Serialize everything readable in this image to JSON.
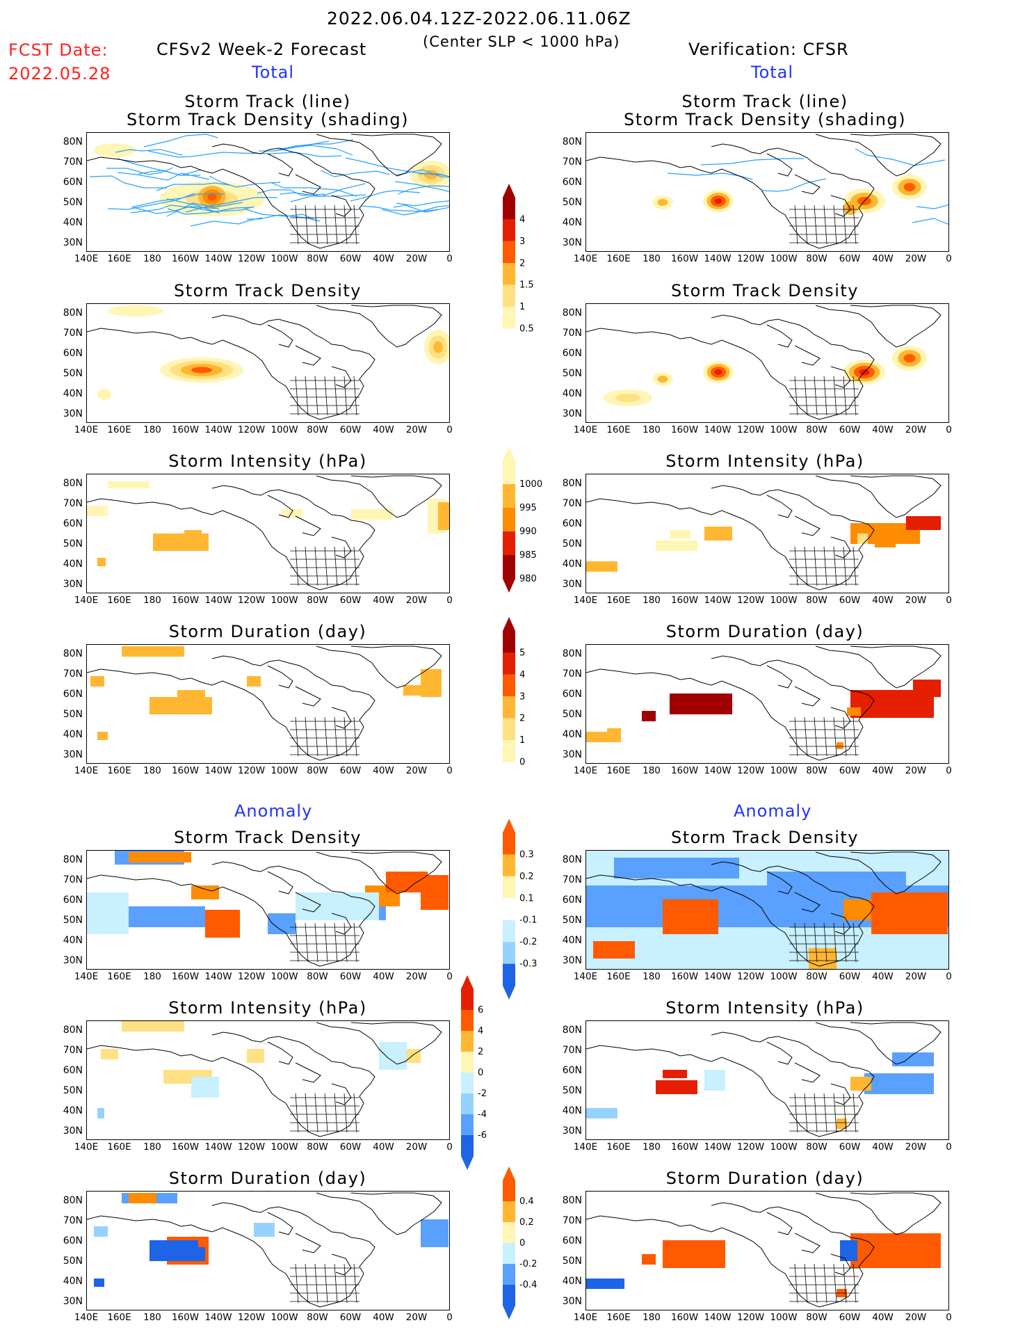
{
  "header": {
    "date_range": "2022.06.04.12Z-2022.06.11.06Z",
    "center_slp": "(Center SLP < 1000 hPa)",
    "fcst_label": "FCST Date:",
    "fcst_date": "2022.05.28",
    "left_title": "CFSv2 Week-2 Forecast",
    "right_title": "Verification: CFSR",
    "total_label": "Total",
    "anomaly_label": "Anomaly"
  },
  "panels": {
    "storm_track_line": "Storm Track (line)",
    "storm_track_shading": "Storm Track Density (shading)",
    "storm_track_density": "Storm Track Density",
    "storm_intensity": "Storm Intensity (hPa)",
    "storm_duration": "Storm Duration (day)"
  },
  "axes": {
    "lat_labels": [
      "80N",
      "70N",
      "60N",
      "50N",
      "40N",
      "30N"
    ],
    "lon_labels": [
      "140E",
      "160E",
      "180",
      "160W",
      "140W",
      "120W",
      "100W",
      "80W",
      "60W",
      "40W",
      "20W",
      "0"
    ]
  },
  "colorbars": {
    "density_total": [
      "4",
      "3",
      "2",
      "1.5",
      "1",
      "0.5"
    ],
    "intensity_total": [
      "1000",
      "995",
      "990",
      "985",
      "980"
    ],
    "duration_total": [
      "5",
      "4",
      "3",
      "2",
      "1",
      "0"
    ],
    "density_anom": [
      "0.3",
      "0.2",
      "0.1",
      "-0.1",
      "-0.2",
      "-0.3"
    ],
    "intensity_anom": [
      "6",
      "4",
      "2",
      "0",
      "-2",
      "-4",
      "-6"
    ],
    "duration_anom": [
      "0.4",
      "0.2",
      "0",
      "-0.2",
      "-0.4"
    ]
  },
  "colors": {
    "warm": [
      "#fff5b4",
      "#ffe082",
      "#ffb732",
      "#ff8c00",
      "#ff5a00",
      "#e61e00",
      "#a00000"
    ],
    "cool": [
      "#c8f0ff",
      "#96d2ff",
      "#5aa0ff",
      "#1e64e6"
    ],
    "track_line": "#28a0ff",
    "text_red": "#ff2020",
    "text_blue": "#1e32ff"
  }
}
